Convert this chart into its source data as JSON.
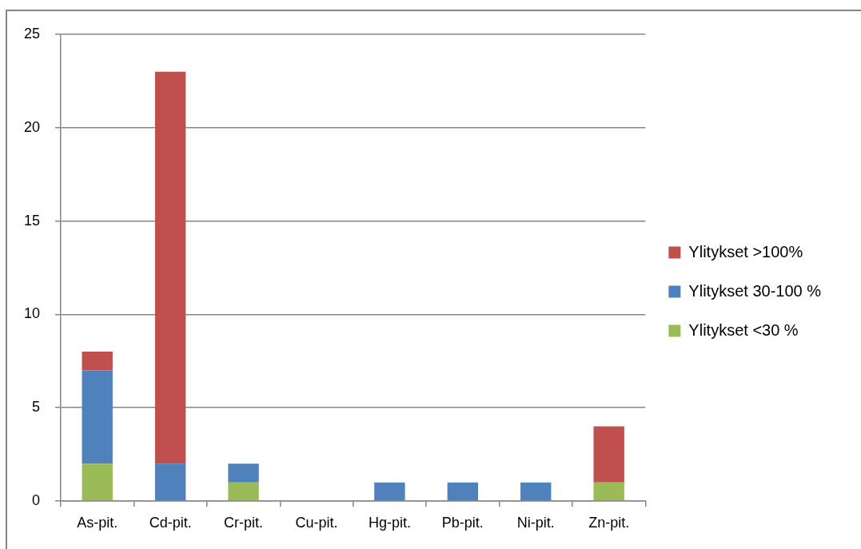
{
  "chart_data": {
    "type": "bar",
    "stacked": true,
    "categories": [
      "As-pit.",
      "Cd-pit.",
      "Cr-pit.",
      "Cu-pit.",
      "Hg-pit.",
      "Pb-pit.",
      "Ni-pit.",
      "Zn-pit."
    ],
    "series": [
      {
        "name": "Ylitykset <30 %",
        "color": "#9bbb59",
        "values": [
          2,
          0,
          1,
          0,
          0,
          0,
          0,
          1
        ]
      },
      {
        "name": "Ylitykset 30-100 %",
        "color": "#4f81bd",
        "values": [
          5,
          2,
          1,
          0,
          1,
          1,
          1,
          0
        ]
      },
      {
        "name": "Ylitykset >100%",
        "color": "#c0504d",
        "values": [
          1,
          21,
          0,
          0,
          0,
          0,
          0,
          3
        ]
      }
    ],
    "ylim": [
      0,
      25
    ],
    "yticks": [
      0,
      5,
      10,
      15,
      20,
      25
    ],
    "grid": "y",
    "legend": "right"
  }
}
